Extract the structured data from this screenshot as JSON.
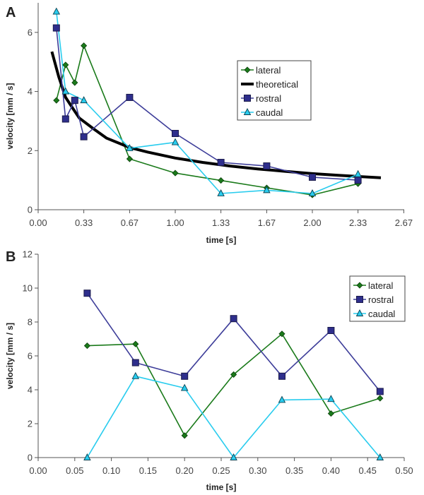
{
  "chart_data": [
    {
      "panel": "A",
      "type": "line",
      "title": "",
      "xlabel": "time   [s]",
      "ylabel": "velocity   [mm / s]",
      "xlim": [
        0,
        2.67
      ],
      "ylim": [
        0,
        7
      ],
      "xticks": [
        "0.00",
        "0.33",
        "0.67",
        "1.00",
        "1.33",
        "1.67",
        "2.00",
        "2.33",
        "2.67"
      ],
      "xtick_values": [
        0,
        0.333,
        0.667,
        1.0,
        1.333,
        1.667,
        2.0,
        2.333,
        2.667
      ],
      "yticks": [
        "0",
        "2",
        "4",
        "6"
      ],
      "ytick_values": [
        0,
        2,
        4,
        6
      ],
      "grid": false,
      "legend_position": "top-right",
      "series": [
        {
          "name": "lateral",
          "color": "#1a7a1a",
          "marker": "diamond",
          "x": [
            0.133,
            0.2,
            0.267,
            0.333,
            0.667,
            1.0,
            1.333,
            1.667,
            2.0,
            2.333
          ],
          "y": [
            3.7,
            4.9,
            4.3,
            5.55,
            1.72,
            1.24,
            0.99,
            0.74,
            0.5,
            0.88
          ]
        },
        {
          "name": "theoretical",
          "color": "#000000",
          "marker": "none",
          "x": [
            0.1,
            0.15,
            0.2,
            0.25,
            0.3,
            0.4,
            0.5,
            0.67,
            0.8,
            1.0,
            1.2,
            1.4,
            1.6,
            1.8,
            2.0,
            2.2,
            2.5
          ],
          "y": [
            5.35,
            4.5,
            3.8,
            3.45,
            3.1,
            2.75,
            2.42,
            2.1,
            1.95,
            1.75,
            1.6,
            1.48,
            1.38,
            1.3,
            1.22,
            1.16,
            1.08
          ]
        },
        {
          "name": "rostral",
          "color": "#3d3d99",
          "marker": "square",
          "x": [
            0.133,
            0.2,
            0.267,
            0.333,
            0.667,
            1.0,
            1.333,
            1.667,
            2.0,
            2.333
          ],
          "y": [
            6.15,
            3.07,
            3.7,
            2.47,
            3.8,
            2.58,
            1.6,
            1.48,
            1.1,
            1.0
          ]
        },
        {
          "name": "caudal",
          "color": "#29ccee",
          "marker": "triangle",
          "x": [
            0.133,
            0.2,
            0.333,
            0.667,
            1.0,
            1.333,
            1.667,
            2.0,
            2.333
          ],
          "y": [
            6.7,
            4.0,
            3.7,
            2.08,
            2.28,
            0.55,
            0.66,
            0.55,
            1.2
          ]
        }
      ]
    },
    {
      "panel": "B",
      "type": "line",
      "title": "",
      "xlabel": "time   [s]",
      "ylabel": "velocity   [mm / s]",
      "xlim": [
        0,
        0.5
      ],
      "ylim": [
        0,
        12
      ],
      "xticks": [
        "0.00",
        "0.05",
        "0.10",
        "0.15",
        "0.20",
        "0.25",
        "0.30",
        "0.35",
        "0.40",
        "0.45",
        "0.50"
      ],
      "xtick_values": [
        0,
        0.05,
        0.1,
        0.15,
        0.2,
        0.25,
        0.3,
        0.35,
        0.4,
        0.45,
        0.5
      ],
      "yticks": [
        "0",
        "2",
        "4",
        "6",
        "8",
        "10",
        "12"
      ],
      "ytick_values": [
        0,
        2,
        4,
        6,
        8,
        10,
        12
      ],
      "grid": false,
      "legend_position": "top-right",
      "series": [
        {
          "name": "lateral",
          "color": "#1a7a1a",
          "marker": "diamond",
          "x": [
            0.067,
            0.133,
            0.2,
            0.267,
            0.333,
            0.4,
            0.467
          ],
          "y": [
            6.6,
            6.7,
            1.3,
            4.9,
            7.3,
            2.6,
            3.5
          ]
        },
        {
          "name": "rostral",
          "color": "#3d3d99",
          "marker": "square",
          "x": [
            0.067,
            0.133,
            0.2,
            0.267,
            0.333,
            0.4,
            0.467
          ],
          "y": [
            9.7,
            5.6,
            4.8,
            8.2,
            4.8,
            7.5,
            3.9
          ]
        },
        {
          "name": "caudal",
          "color": "#29ccee",
          "marker": "triangle",
          "x": [
            0.067,
            0.133,
            0.2,
            0.267,
            0.333,
            0.4,
            0.467
          ],
          "y": [
            0.0,
            4.8,
            4.1,
            0.0,
            3.4,
            3.45,
            0.0
          ]
        }
      ]
    }
  ]
}
